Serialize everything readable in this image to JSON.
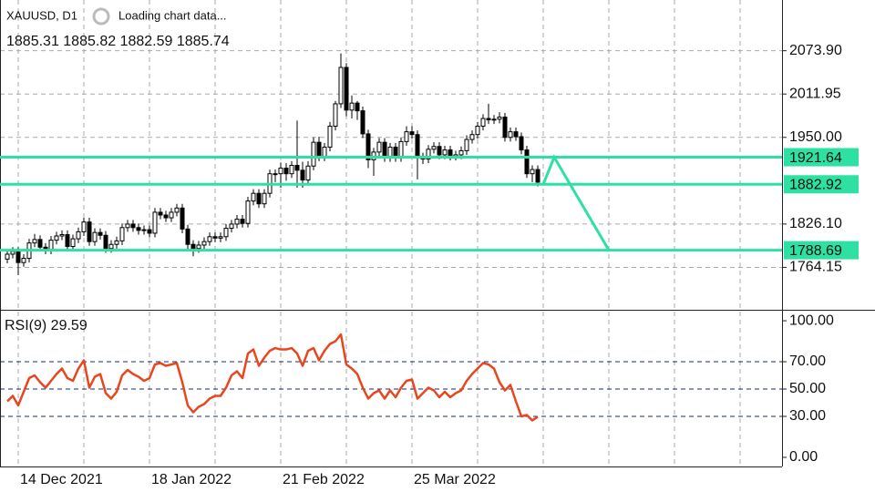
{
  "header": {
    "symbol": "XAUUSD, D1",
    "status": "Loading chart data...",
    "ohlc": "1885.31 1885.82 1882.59 1885.74"
  },
  "chart_data": [
    {
      "type": "candlestick",
      "categories": [
        null,
        null,
        "14 Dec 2021",
        null,
        null,
        null,
        null,
        null,
        null,
        null,
        null,
        null,
        null,
        null,
        null,
        null,
        null,
        null,
        null,
        null,
        null,
        null,
        null,
        null,
        null,
        null,
        "18 Jan 2022",
        null,
        null,
        null,
        null,
        null,
        null,
        null,
        null,
        null,
        null,
        null,
        null,
        null,
        null,
        null,
        null,
        null,
        null,
        null,
        null,
        null,
        null,
        null,
        "21 Feb 2022",
        null,
        null,
        null,
        null,
        null,
        null,
        null,
        null,
        null,
        null,
        null,
        null,
        null,
        null,
        null,
        null,
        null,
        null,
        null,
        null,
        null,
        null,
        null,
        "25 Mar 2022",
        null,
        null,
        null,
        null,
        null,
        null,
        null,
        null,
        null,
        null,
        null,
        null,
        null,
        null,
        null,
        null,
        null,
        null,
        null,
        null,
        null,
        null,
        null
      ],
      "open": [
        1776,
        1783,
        1787,
        1771,
        1777,
        1799,
        1804,
        1793,
        1789,
        1803,
        1809,
        1811,
        1794,
        1805,
        1815,
        1829,
        1801,
        1814,
        1810,
        1791,
        1797,
        1802,
        1821,
        1826,
        1821,
        1817,
        1818,
        1813,
        1843,
        1839,
        1835,
        1843,
        1849,
        1819,
        1797,
        1791,
        1796,
        1801,
        1808,
        1806,
        1808,
        1820,
        1826,
        1833,
        1827,
        1859,
        1870,
        1855,
        1870,
        1898,
        1898,
        1906,
        1898,
        1910,
        1903,
        1889,
        1909,
        1943,
        1922,
        1936,
        1966,
        1998,
        2050,
        1989,
        1999,
        1988,
        1955,
        1918,
        1929,
        1943,
        1921,
        1936,
        1921,
        1944,
        1958,
        1954,
        1922,
        1919,
        1933,
        1937,
        1925,
        1932,
        1923,
        1925,
        1931,
        1947,
        1954,
        1966,
        1977,
        1975,
        1976,
        1979,
        1950,
        1958,
        1951,
        1932,
        1898,
        1904
      ],
      "high": [
        1789,
        1793,
        1793,
        1783,
        1805,
        1812,
        1810,
        1799,
        1809,
        1815,
        1817,
        1817,
        1811,
        1821,
        1835,
        1835,
        1820,
        1820,
        1816,
        1803,
        1808,
        1827,
        1832,
        1832,
        1827,
        1824,
        1824,
        1849,
        1849,
        1845,
        1849,
        1855,
        1855,
        1825,
        1803,
        1802,
        1807,
        1814,
        1814,
        1814,
        1826,
        1832,
        1839,
        1839,
        1865,
        1876,
        1876,
        1876,
        1904,
        1904,
        1914,
        1913,
        1916,
        1974,
        1915,
        1916,
        1950,
        1951,
        1942,
        1972,
        2002,
        2070,
        2056,
        2010,
        2002,
        1994,
        1961,
        1935,
        1949,
        1949,
        1942,
        1942,
        1950,
        1966,
        1966,
        1960,
        1928,
        1939,
        1943,
        1943,
        1938,
        1938,
        1931,
        1937,
        1953,
        1960,
        1972,
        1983,
        1998,
        1982,
        1986,
        1985,
        1964,
        1964,
        1957,
        1938,
        1910,
        1910
      ],
      "low": [
        1770,
        1777,
        1753,
        1765,
        1771,
        1793,
        1787,
        1783,
        1783,
        1797,
        1803,
        1788,
        1788,
        1799,
        1809,
        1795,
        1795,
        1804,
        1785,
        1785,
        1791,
        1796,
        1815,
        1815,
        1811,
        1811,
        1807,
        1807,
        1833,
        1829,
        1829,
        1837,
        1813,
        1788,
        1780,
        1785,
        1790,
        1795,
        1800,
        1800,
        1802,
        1814,
        1820,
        1821,
        1821,
        1853,
        1849,
        1849,
        1864,
        1886,
        1878,
        1888,
        1892,
        1878,
        1878,
        1883,
        1903,
        1916,
        1916,
        1930,
        1960,
        1992,
        1980,
        1977,
        1975,
        1949,
        1906,
        1895,
        1923,
        1915,
        1915,
        1915,
        1915,
        1938,
        1948,
        1890,
        1912,
        1913,
        1927,
        1919,
        1919,
        1917,
        1917,
        1919,
        1925,
        1941,
        1948,
        1960,
        1969,
        1969,
        1970,
        1944,
        1944,
        1945,
        1926,
        1892,
        1886,
        1880
      ],
      "close": [
        1783,
        1787,
        1771,
        1777,
        1799,
        1804,
        1793,
        1789,
        1803,
        1809,
        1811,
        1794,
        1805,
        1815,
        1829,
        1801,
        1814,
        1810,
        1791,
        1797,
        1802,
        1821,
        1826,
        1821,
        1817,
        1818,
        1813,
        1843,
        1839,
        1835,
        1843,
        1849,
        1819,
        1797,
        1791,
        1796,
        1801,
        1808,
        1806,
        1808,
        1820,
        1826,
        1833,
        1827,
        1859,
        1870,
        1855,
        1870,
        1898,
        1898,
        1906,
        1898,
        1910,
        1903,
        1889,
        1909,
        1943,
        1922,
        1936,
        1966,
        1998,
        2050,
        1989,
        1999,
        1988,
        1955,
        1918,
        1929,
        1943,
        1921,
        1936,
        1921,
        1944,
        1958,
        1954,
        1922,
        1919,
        1933,
        1937,
        1925,
        1932,
        1923,
        1925,
        1931,
        1947,
        1954,
        1966,
        1977,
        1975,
        1976,
        1979,
        1950,
        1958,
        1951,
        1932,
        1898,
        1904,
        1886
      ],
      "up_color": "#ffffff",
      "down_color": "#000000",
      "ylim": [
        1703.5,
        2146.4
      ],
      "yticks": [
        {
          "value": 2073.9,
          "label": "2073.90"
        },
        2011.95,
        {
          "value": 1950,
          "label": "1950.00"
        },
        {
          "value": 1826.1,
          "label": "1826.10"
        },
        1764.15
      ],
      "levels": [
        1921.64,
        1882.92,
        1788.69
      ],
      "level_color": "#2ee0a2",
      "projection": {
        "x": [
          98,
          100,
          110
        ],
        "values": [
          1882.92,
          1921.64,
          1788.69
        ]
      },
      "grid": true
    },
    {
      "type": "line",
      "title": "RSI(9) 29.59",
      "color": "#e8461e",
      "values": [
        41,
        45,
        38,
        48,
        58,
        60,
        55,
        51,
        56,
        61,
        65,
        58,
        56,
        65,
        71,
        51,
        59,
        61,
        47,
        43,
        48,
        60,
        64,
        61,
        59,
        56,
        58,
        68,
        69,
        67,
        68,
        69,
        55,
        38,
        33,
        37,
        39,
        43,
        45,
        45,
        51,
        60,
        63,
        58,
        76,
        79,
        67,
        73,
        78,
        80,
        79,
        79,
        80,
        76,
        67,
        78,
        80,
        71,
        78,
        83,
        85,
        90,
        68,
        65,
        61,
        51,
        43,
        47,
        49,
        43,
        49,
        44,
        51,
        56,
        57,
        43,
        47,
        51,
        49,
        44,
        48,
        44,
        47,
        49,
        56,
        61,
        65,
        69,
        68,
        65,
        55,
        49,
        53,
        41,
        30,
        31,
        27,
        29.59
      ],
      "ylim": [
        -6.7,
        106.7
      ],
      "yticks": [
        {
          "value": 100,
          "label": "100.00"
        },
        {
          "value": 70,
          "label": "70.00"
        },
        {
          "value": 50,
          "label": "50.00"
        },
        {
          "value": 30,
          "label": "30.00"
        },
        {
          "value": 0,
          "label": "0.00"
        }
      ],
      "levels": [
        70,
        50,
        30
      ]
    }
  ]
}
